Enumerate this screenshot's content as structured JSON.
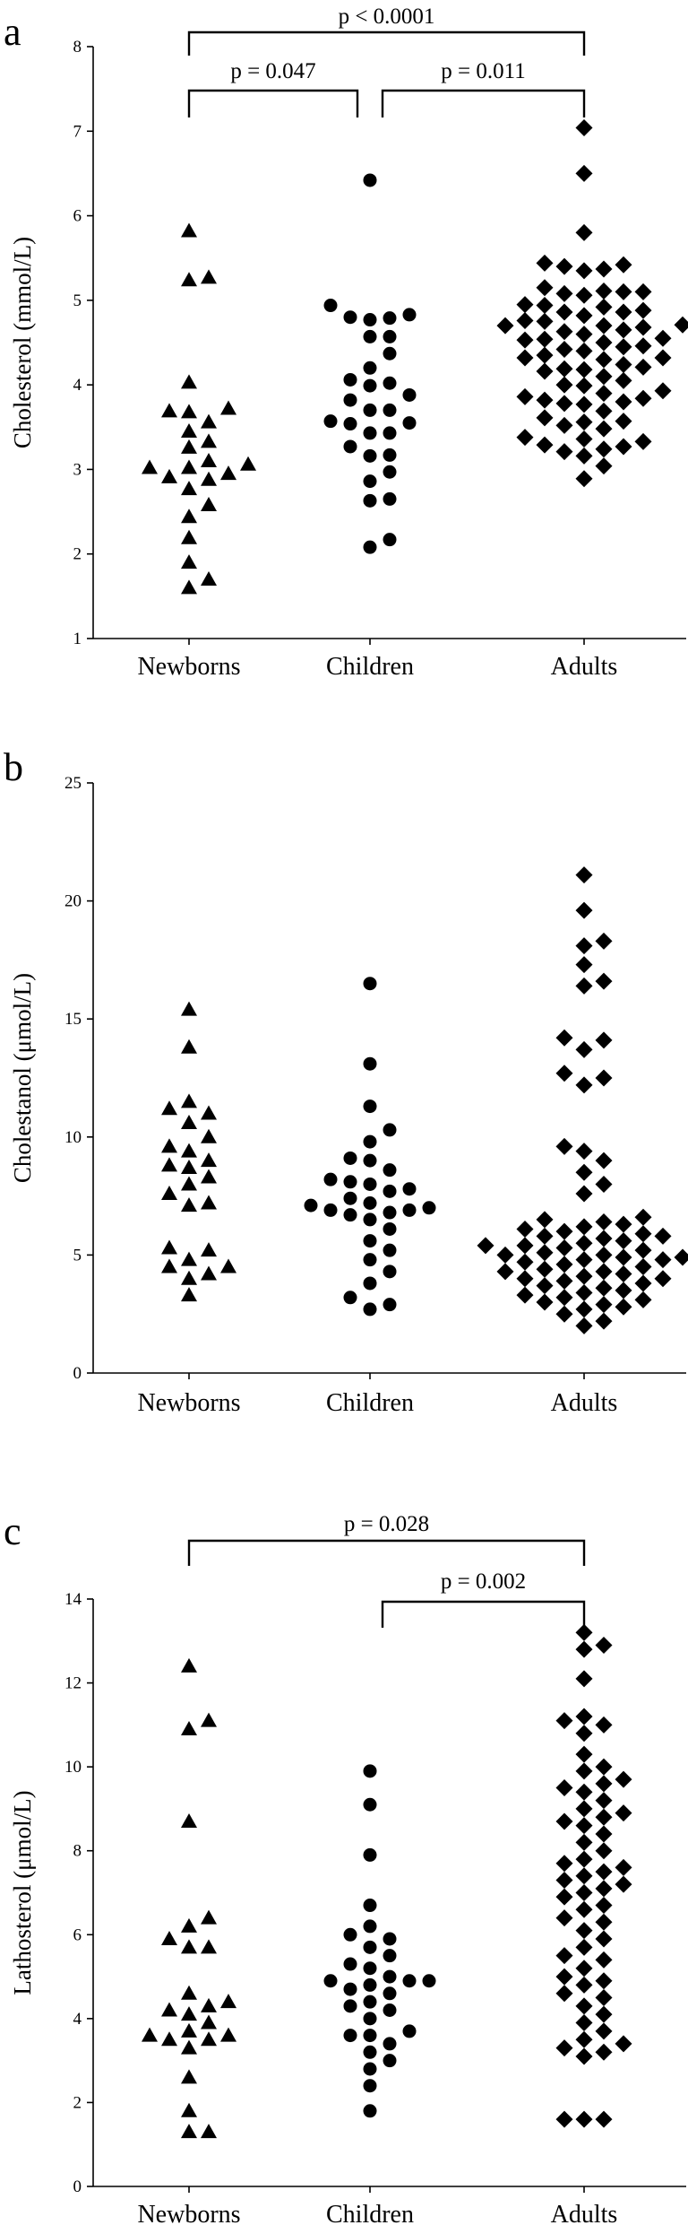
{
  "chart_data": [
    {
      "type": "scatter",
      "panel": "a",
      "title": "",
      "ylabel": "Cholesterol (mmol/L)",
      "ylim": [
        1,
        8
      ],
      "yticks": [
        1,
        2,
        3,
        4,
        5,
        6,
        7,
        8
      ],
      "categories": [
        "Newborns",
        "Children",
        "Adults"
      ],
      "series": [
        {
          "name": "Newborns",
          "marker": "triangle",
          "values": [
            5.82,
            5.27,
            5.24,
            4.03,
            3.72,
            3.69,
            3.68,
            3.56,
            3.45,
            3.33,
            3.26,
            3.1,
            3.06,
            3.02,
            3.02,
            2.95,
            2.91,
            2.88,
            2.77,
            2.58,
            2.44,
            2.19,
            1.9,
            1.7,
            1.6
          ]
        },
        {
          "name": "Children",
          "marker": "circle",
          "values": [
            6.42,
            4.94,
            4.83,
            4.8,
            4.79,
            4.77,
            4.57,
            4.57,
            4.37,
            4.2,
            4.06,
            4.02,
            3.99,
            3.88,
            3.82,
            3.7,
            3.7,
            3.57,
            3.55,
            3.54,
            3.43,
            3.43,
            3.27,
            3.17,
            3.16,
            2.97,
            2.86,
            2.65,
            2.63,
            2.17,
            2.08
          ]
        },
        {
          "name": "Adults",
          "marker": "diamond",
          "values": [
            7.04,
            6.5,
            5.8,
            5.44,
            5.42,
            5.4,
            5.37,
            5.35,
            5.15,
            5.11,
            5.1,
            5.1,
            5.08,
            5.06,
            4.95,
            4.94,
            4.92,
            4.88,
            4.86,
            4.86,
            4.82,
            4.76,
            4.75,
            4.71,
            4.7,
            4.7,
            4.68,
            4.65,
            4.63,
            4.6,
            4.55,
            4.54,
            4.53,
            4.5,
            4.46,
            4.45,
            4.42,
            4.4,
            4.35,
            4.32,
            4.32,
            4.3,
            4.24,
            4.21,
            4.19,
            4.18,
            4.16,
            4.1,
            4.05,
            4.0,
            3.99,
            3.93,
            3.9,
            3.86,
            3.84,
            3.82,
            3.8,
            3.78,
            3.77,
            3.69,
            3.61,
            3.57,
            3.56,
            3.52,
            3.48,
            3.38,
            3.36,
            3.33,
            3.29,
            3.27,
            3.24,
            3.21,
            3.16,
            3.04,
            2.89
          ]
        }
      ],
      "comparisons": [
        {
          "from": "Newborns",
          "to": "Adults",
          "label": "p < 0.0001"
        },
        {
          "from": "Newborns",
          "to": "Children",
          "label": "p = 0.047"
        },
        {
          "from": "Children",
          "to": "Adults",
          "label": "p = 0.011"
        }
      ]
    },
    {
      "type": "scatter",
      "panel": "b",
      "title": "",
      "ylabel": "Cholestanol (μmol/L)",
      "ylim": [
        0,
        25
      ],
      "yticks": [
        0,
        5,
        10,
        15,
        20,
        25
      ],
      "categories": [
        "Newborns",
        "Children",
        "Adults"
      ],
      "series": [
        {
          "name": "Newborns",
          "marker": "triangle",
          "values": [
            15.4,
            13.8,
            11.5,
            11.2,
            11.0,
            10.6,
            10.0,
            9.6,
            9.4,
            9.0,
            8.8,
            8.7,
            8.3,
            8.0,
            7.6,
            7.2,
            7.1,
            5.3,
            5.2,
            4.8,
            4.5,
            4.5,
            4.2,
            4.0,
            3.3
          ]
        },
        {
          "name": "Children",
          "marker": "circle",
          "values": [
            16.5,
            13.1,
            11.3,
            10.3,
            9.8,
            9.1,
            9.0,
            8.6,
            8.2,
            8.1,
            8.0,
            7.8,
            7.7,
            7.4,
            7.2,
            7.1,
            7.0,
            6.9,
            6.9,
            6.8,
            6.7,
            6.5,
            6.1,
            5.6,
            5.2,
            4.8,
            4.3,
            3.8,
            3.2,
            2.9,
            2.7
          ]
        },
        {
          "name": "Adults",
          "marker": "diamond",
          "values": [
            21.1,
            19.6,
            18.3,
            18.1,
            17.3,
            16.6,
            16.4,
            14.2,
            14.1,
            13.7,
            12.7,
            12.5,
            12.2,
            9.6,
            9.4,
            9.0,
            8.5,
            8.0,
            7.6,
            6.6,
            6.5,
            6.4,
            6.3,
            6.2,
            6.1,
            6.0,
            5.9,
            5.8,
            5.8,
            5.7,
            5.6,
            5.5,
            5.4,
            5.4,
            5.3,
            5.2,
            5.1,
            5.0,
            5.0,
            4.9,
            4.9,
            4.8,
            4.8,
            4.7,
            4.6,
            4.5,
            4.4,
            4.3,
            4.3,
            4.2,
            4.1,
            4.0,
            4.0,
            3.9,
            3.8,
            3.7,
            3.6,
            3.5,
            3.4,
            3.3,
            3.2,
            3.1,
            3.0,
            2.9,
            2.8,
            2.7,
            2.5,
            2.2,
            2.0
          ]
        }
      ],
      "comparisons": []
    },
    {
      "type": "scatter",
      "panel": "c",
      "title": "",
      "ylabel": "Lathosterol (μmol/L)",
      "ylim": [
        0,
        14
      ],
      "yticks": [
        0,
        2,
        4,
        6,
        8,
        10,
        12,
        14
      ],
      "categories": [
        "Newborns",
        "Children",
        "Adults"
      ],
      "series": [
        {
          "name": "Newborns",
          "marker": "triangle",
          "values": [
            12.4,
            11.1,
            10.9,
            8.7,
            6.4,
            6.2,
            5.9,
            5.7,
            5.7,
            4.6,
            4.4,
            4.3,
            4.2,
            4.1,
            3.9,
            3.7,
            3.6,
            3.6,
            3.5,
            3.5,
            3.3,
            2.6,
            1.8,
            1.3,
            1.3
          ]
        },
        {
          "name": "Children",
          "marker": "circle",
          "values": [
            9.9,
            9.1,
            7.9,
            6.7,
            6.2,
            6.0,
            5.9,
            5.7,
            5.5,
            5.3,
            5.2,
            5.0,
            4.9,
            4.9,
            4.9,
            4.8,
            4.7,
            4.6,
            4.4,
            4.3,
            4.2,
            4.0,
            3.7,
            3.6,
            3.6,
            3.4,
            3.2,
            3.0,
            2.8,
            2.4,
            1.8
          ]
        },
        {
          "name": "Adults",
          "marker": "diamond",
          "values": [
            13.2,
            12.9,
            12.8,
            12.1,
            11.2,
            11.1,
            11.0,
            10.8,
            10.3,
            10.0,
            9.9,
            9.7,
            9.6,
            9.5,
            9.4,
            9.2,
            9.0,
            8.9,
            8.8,
            8.7,
            8.6,
            8.4,
            8.2,
            8.0,
            7.8,
            7.7,
            7.6,
            7.5,
            7.4,
            7.3,
            7.2,
            7.1,
            7.0,
            6.9,
            6.7,
            6.6,
            6.4,
            6.3,
            6.1,
            5.9,
            5.7,
            5.5,
            5.4,
            5.2,
            5.0,
            4.9,
            4.8,
            4.6,
            4.5,
            4.3,
            4.1,
            3.9,
            3.7,
            3.5,
            3.4,
            3.3,
            3.2,
            3.1,
            1.6,
            1.6,
            1.6
          ]
        }
      ],
      "comparisons": [
        {
          "from": "Newborns",
          "to": "Adults",
          "label": "p = 0.028"
        },
        {
          "from": "Children",
          "to": "Adults",
          "label": "p = 0.002"
        }
      ]
    }
  ]
}
